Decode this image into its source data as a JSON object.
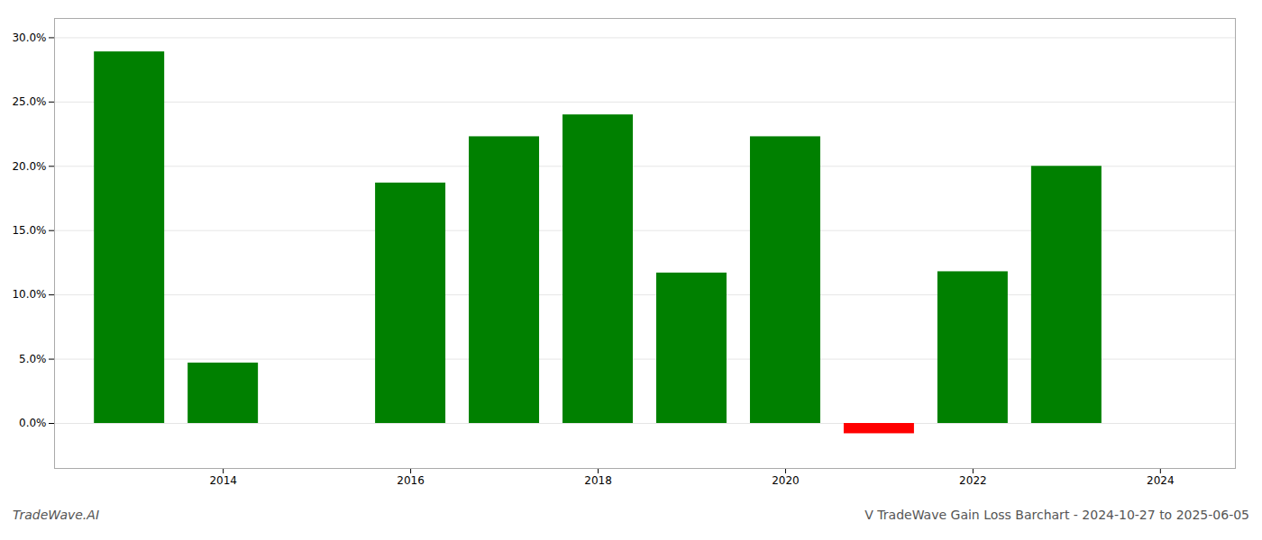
{
  "chart_data": {
    "type": "bar",
    "title": "V TradeWave Gain Loss Barchart - 2024-10-27 to 2025-06-05",
    "annotations": [
      "TradeWave.AI"
    ],
    "x": [
      2013,
      2014,
      2016,
      2017,
      2018,
      2019,
      2020,
      2021,
      2022,
      2023
    ],
    "values": [
      0.289,
      0.047,
      0.187,
      0.223,
      0.24,
      0.117,
      0.223,
      -0.008,
      0.118,
      0.2
    ],
    "colors": [
      "#008000",
      "#008000",
      "#008000",
      "#008000",
      "#008000",
      "#008000",
      "#008000",
      "#ff0000",
      "#008000",
      "#008000"
    ],
    "xlim": [
      2012.2,
      2024.8
    ],
    "xticks": [
      2014,
      2016,
      2018,
      2020,
      2022,
      2024
    ],
    "ylim": [
      -0.035,
      0.315
    ],
    "yticks": [
      {
        "value": 0.0,
        "label": "0.0%"
      },
      {
        "value": 0.05,
        "label": "5.0%"
      },
      {
        "value": 0.1,
        "label": "10.0%"
      },
      {
        "value": 0.15,
        "label": "15.0%"
      },
      {
        "value": 0.2,
        "label": "20.0%"
      },
      {
        "value": 0.25,
        "label": "25.0%"
      },
      {
        "value": 0.3,
        "label": "30.0%"
      }
    ],
    "grid": true
  }
}
